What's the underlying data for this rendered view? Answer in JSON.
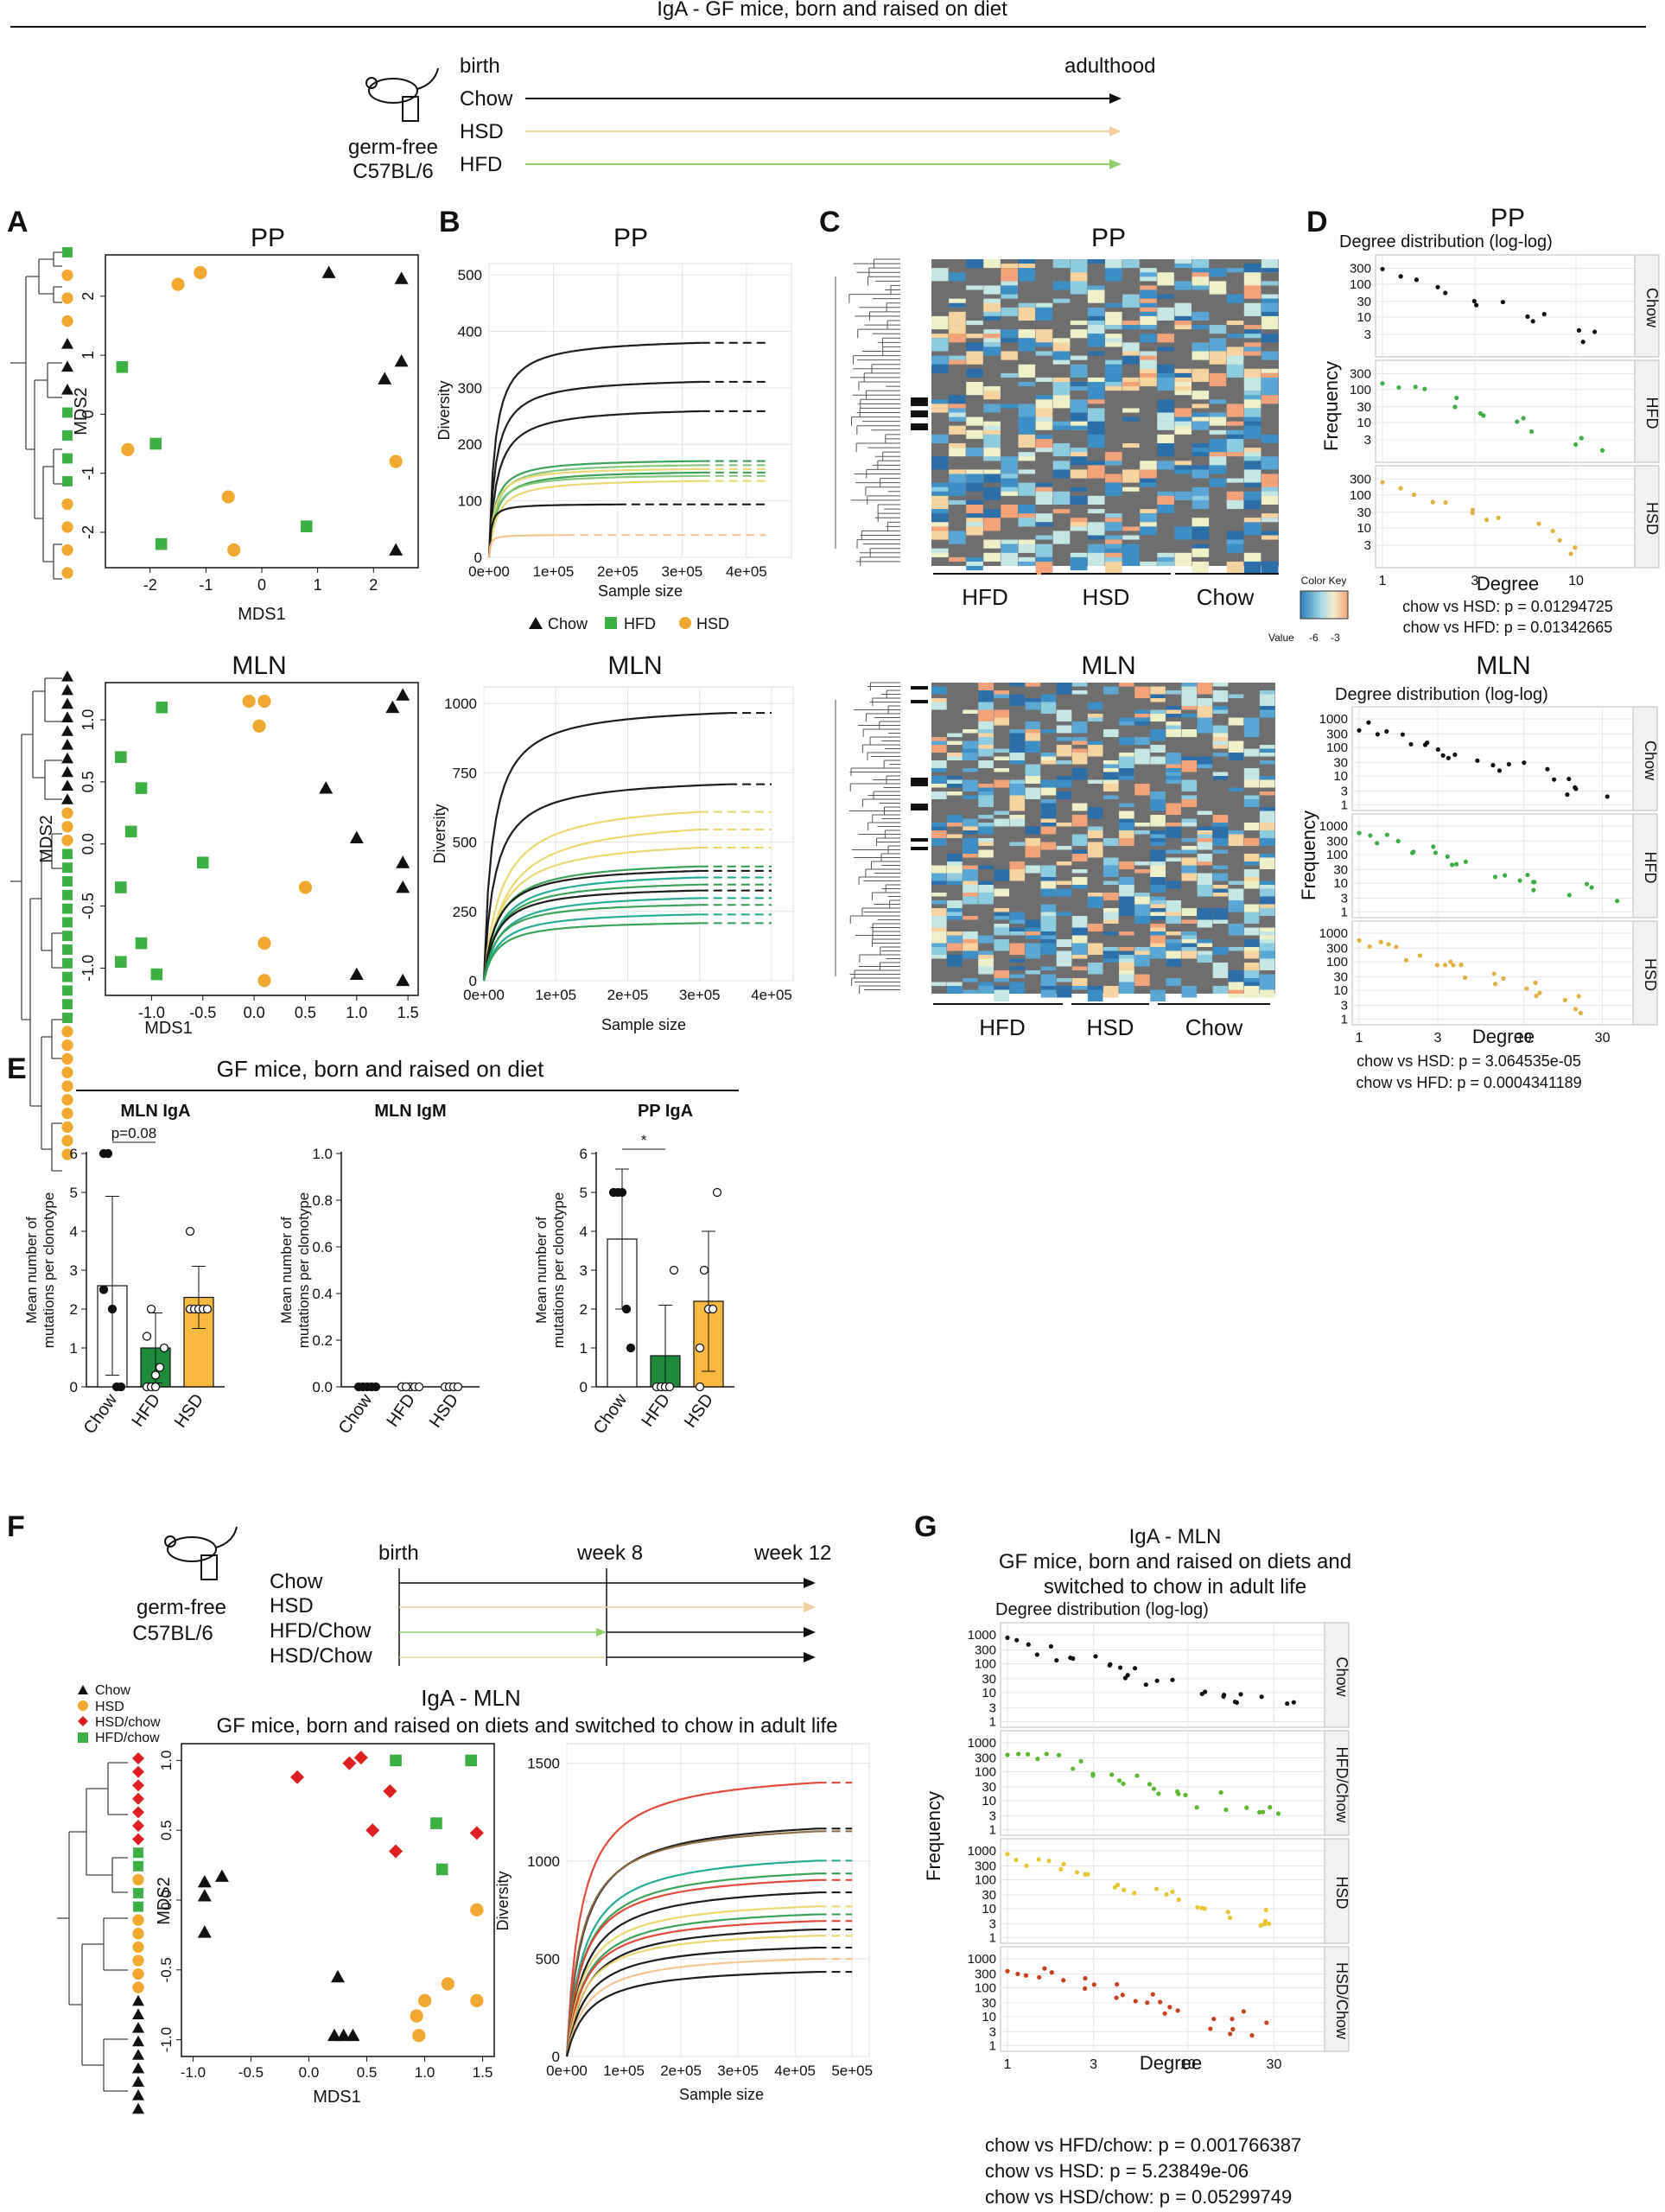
{
  "header": {
    "title": "IgA - GF mice, born and raised on diet",
    "mouse_label": [
      "germ-free",
      "C57BL/6"
    ],
    "timeline_start": "birth",
    "timeline_end": "adulthood",
    "diets": [
      "Chow",
      "HSD",
      "HFD"
    ]
  },
  "panel_labels": [
    "A",
    "B",
    "C",
    "D",
    "E",
    "F",
    "G"
  ],
  "panelA": {
    "pp": {
      "title": "PP",
      "xlabel": "MDS1",
      "ylabel": "MDS2",
      "xticks": [
        "-2",
        "-1",
        "0",
        "1",
        "2"
      ],
      "yticks": [
        "2",
        "1",
        "0",
        "-1",
        "-2"
      ],
      "points": [
        {
          "g": "HSD",
          "x": -1.5,
          "y": 2.2
        },
        {
          "g": "HSD",
          "x": -1.1,
          "y": 2.4
        },
        {
          "g": "Chow",
          "x": 1.2,
          "y": 2.4
        },
        {
          "g": "Chow",
          "x": 2.5,
          "y": 2.3
        },
        {
          "g": "HFD",
          "x": -2.5,
          "y": 0.8
        },
        {
          "g": "Chow",
          "x": 2.2,
          "y": 0.6
        },
        {
          "g": "Chow",
          "x": 2.5,
          "y": 0.9
        },
        {
          "g": "HFD",
          "x": -1.9,
          "y": -0.5
        },
        {
          "g": "HSD",
          "x": -2.4,
          "y": -0.6
        },
        {
          "g": "HSD",
          "x": 2.4,
          "y": -0.8
        },
        {
          "g": "HSD",
          "x": -0.6,
          "y": -1.4
        },
        {
          "g": "HFD",
          "x": 0.8,
          "y": -1.9
        },
        {
          "g": "HSD",
          "x": -0.5,
          "y": -2.3
        },
        {
          "g": "HFD",
          "x": -1.8,
          "y": -2.2
        },
        {
          "g": "Chow",
          "x": 2.4,
          "y": -2.3
        }
      ]
    },
    "mln": {
      "title": "MLN",
      "xlabel": "MDS1",
      "ylabel": "MDS2",
      "xticks": [
        "-1.0",
        "-0.5",
        "0.0",
        "0.5",
        "1.0",
        "1.5"
      ],
      "yticks": [
        "1.0",
        "0.5",
        "0.0",
        "-0.5",
        "-1.0"
      ],
      "points": [
        {
          "g": "HSD",
          "x": -0.05,
          "y": 1.15
        },
        {
          "g": "HSD",
          "x": 0.1,
          "y": 1.15
        },
        {
          "g": "HSD",
          "x": 0.05,
          "y": 0.95
        },
        {
          "g": "Chow",
          "x": 1.45,
          "y": 1.2
        },
        {
          "g": "Chow",
          "x": 1.35,
          "y": 1.1
        },
        {
          "g": "HFD",
          "x": -0.9,
          "y": 1.1
        },
        {
          "g": "HFD",
          "x": -1.3,
          "y": 0.7
        },
        {
          "g": "HFD",
          "x": -1.1,
          "y": 0.45
        },
        {
          "g": "Chow",
          "x": 0.7,
          "y": 0.45
        },
        {
          "g": "HFD",
          "x": -1.2,
          "y": 0.1
        },
        {
          "g": "Chow",
          "x": 1.0,
          "y": 0.05
        },
        {
          "g": "HFD",
          "x": -0.5,
          "y": -0.15
        },
        {
          "g": "Chow",
          "x": 1.45,
          "y": -0.15
        },
        {
          "g": "HFD",
          "x": -1.3,
          "y": -0.35
        },
        {
          "g": "Chow",
          "x": 1.45,
          "y": -0.35
        },
        {
          "g": "HSD",
          "x": 0.5,
          "y": -0.35
        },
        {
          "g": "HFD",
          "x": -1.1,
          "y": -0.8
        },
        {
          "g": "HSD",
          "x": 0.1,
          "y": -0.8
        },
        {
          "g": "HFD",
          "x": -1.3,
          "y": -0.95
        },
        {
          "g": "HFD",
          "x": -0.95,
          "y": -1.05
        },
        {
          "g": "HSD",
          "x": 0.1,
          "y": -1.1
        },
        {
          "g": "Chow",
          "x": 1.0,
          "y": -1.05
        },
        {
          "g": "Chow",
          "x": 1.45,
          "y": -1.1
        }
      ]
    }
  },
  "panelB": {
    "legend": [
      "Chow",
      "HFD",
      "HSD"
    ],
    "pp": {
      "title": "PP",
      "xlabel": "Sample size",
      "ylabel": "Diversity",
      "xticks": [
        "0e+00",
        "1e+05",
        "2e+05",
        "3e+05",
        "4e+05"
      ],
      "yticks": [
        "0",
        "100",
        "200",
        "300",
        "400",
        "500"
      ]
    },
    "mln": {
      "title": "MLN",
      "xlabel": "Sample size",
      "ylabel": "Diversity",
      "xticks": [
        "0e+00",
        "1e+05",
        "2e+05",
        "3e+05",
        "4e+05"
      ],
      "yticks": [
        "0",
        "250",
        "500",
        "750",
        "1000"
      ]
    }
  },
  "panelC": {
    "pp": {
      "title": "PP",
      "groups": [
        "HFD",
        "HSD",
        "Chow"
      ]
    },
    "mln": {
      "title": "MLN",
      "groups": [
        "HFD",
        "HSD",
        "Chow"
      ]
    },
    "color_key": {
      "title": "Color Key",
      "label": "Value",
      "ticks": [
        "-6",
        "-3"
      ]
    }
  },
  "panelD": {
    "pp": {
      "title": "PP",
      "subtitle": "Degree distribution (log-log)",
      "facets": [
        "Chow",
        "HFD",
        "HSD"
      ],
      "yticks": [
        "300",
        "100",
        "30",
        "10",
        "3"
      ],
      "xticks": [
        "1",
        "3",
        "10"
      ],
      "xlabel": "Degree",
      "ylabel": "Frequency",
      "stats": [
        "chow vs HSD: p = 0.01294725",
        "chow vs HFD: p = 0.01342665"
      ]
    },
    "mln": {
      "title": "MLN",
      "subtitle": "Degree distribution (log-log)",
      "facets": [
        "Chow",
        "HFD",
        "HSD"
      ],
      "yticks": [
        "1000",
        "300",
        "100",
        "30",
        "10",
        "3",
        "1"
      ],
      "xticks": [
        "1",
        "3",
        "10",
        "30"
      ],
      "xlabel": "Degree",
      "ylabel": "Frequency",
      "stats": [
        "chow vs HSD: p = 3.064535e-05",
        "chow vs HFD: p = 0.0004341189"
      ]
    }
  },
  "panelE": {
    "title": "GF mice, born and raised on diet",
    "ylabel": [
      "Mean number of",
      "mutations per clonotype"
    ],
    "groups": [
      "Chow",
      "HFD",
      "HSD"
    ],
    "charts": [
      {
        "title": "MLN IgA",
        "yticks": [
          "0",
          "1",
          "2",
          "3",
          "4",
          "5",
          "6"
        ],
        "means": [
          2.6,
          1.0,
          2.3
        ],
        "sig": "p=0.08"
      },
      {
        "title": "MLN IgM",
        "yticks": [
          "0.0",
          "0.2",
          "0.4",
          "0.6",
          "0.8",
          "1.0"
        ],
        "means": [
          0,
          0,
          0
        ],
        "sig": ""
      },
      {
        "title": "PP IgA",
        "yticks": [
          "0",
          "1",
          "2",
          "3",
          "4",
          "5",
          "6"
        ],
        "means": [
          3.8,
          0.8,
          2.2
        ],
        "sig": "*"
      }
    ]
  },
  "panelF": {
    "mouse_label": [
      "germ-free",
      "C57BL/6"
    ],
    "timeline_labels": [
      "birth",
      "week 8",
      "week 12"
    ],
    "diets": [
      "Chow",
      "HSD",
      "HFD/Chow",
      "HSD/Chow"
    ],
    "legend": [
      "Chow",
      "HSD",
      "HSD/chow",
      "HFD/chow"
    ],
    "title": "IgA - MLN",
    "subtitle": "GF mice, born and raised on diets and switched to chow in adult life",
    "mds": {
      "xlabel": "MDS1",
      "ylabel": "MDS2",
      "xticks": [
        "-1.0",
        "-0.5",
        "0.0",
        "0.5",
        "1.0",
        "1.5"
      ],
      "yticks": [
        "1.0",
        "0.5",
        "0.0",
        "-0.5",
        "-1.0"
      ]
    },
    "rarefaction": {
      "xlabel": "Sample size",
      "ylabel": "Diversity",
      "xticks": [
        "0e+00",
        "1e+05",
        "2e+05",
        "3e+05",
        "4e+05",
        "5e+05"
      ],
      "yticks": [
        "0",
        "500",
        "1000",
        "1500"
      ]
    }
  },
  "panelG": {
    "title": [
      "IgA - MLN",
      "GF mice, born and raised on diets and",
      "switched to chow in adult life"
    ],
    "subtitle": "Degree distribution (log-log)",
    "facets": [
      "Chow",
      "HFD/Chow",
      "HSD",
      "HSD/Chow"
    ],
    "yticks": [
      "1000",
      "300",
      "100",
      "30",
      "10",
      "3",
      "1"
    ],
    "xticks": [
      "1",
      "3",
      "10",
      "30"
    ],
    "xlabel": "Degree",
    "ylabel": "Frequency",
    "stats": [
      "chow vs HFD/chow: p = 0.001766387",
      "chow vs HSD: p = 5.23849e-06",
      "chow vs HSD/chow: p = 0.05299749"
    ]
  },
  "colors": {
    "Chow": "#111111",
    "HFD": "#3cb043",
    "HSD": "#f0a830",
    "HSDchow": "#e02020",
    "heat_bg": "#6e6e6e"
  }
}
